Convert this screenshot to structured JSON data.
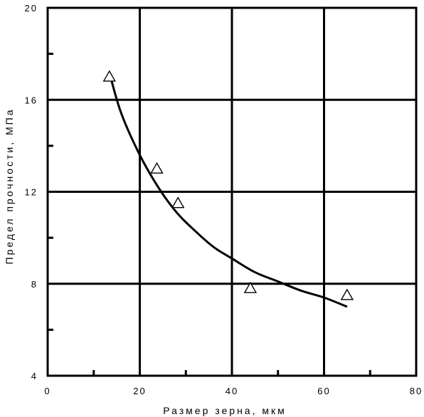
{
  "chart_data": {
    "type": "scatter",
    "title": "",
    "xlabel": "Размер зерна, мкм",
    "ylabel": "Предел прочности, МПа",
    "xlim": [
      0,
      80
    ],
    "ylim": [
      4,
      20
    ],
    "x_ticks": [
      "0",
      "20",
      "40",
      "60",
      "80"
    ],
    "y_ticks": [
      "4",
      "8",
      "12",
      "16",
      "20"
    ],
    "grid": true,
    "marker": "open-triangle",
    "points": [
      {
        "x": 13.4,
        "y": 17.0
      },
      {
        "x": 23.7,
        "y": 13.0
      },
      {
        "x": 28.3,
        "y": 11.5
      },
      {
        "x": 44.0,
        "y": 7.8
      },
      {
        "x": 65.0,
        "y": 7.5
      }
    ],
    "fit_curve": [
      {
        "x": 13.5,
        "y": 17.1
      },
      {
        "x": 16.0,
        "y": 15.4
      },
      {
        "x": 20.0,
        "y": 13.6
      },
      {
        "x": 24.0,
        "y": 12.2
      },
      {
        "x": 28.0,
        "y": 11.1
      },
      {
        "x": 32.0,
        "y": 10.3
      },
      {
        "x": 36.0,
        "y": 9.6
      },
      {
        "x": 40.0,
        "y": 9.1
      },
      {
        "x": 45.0,
        "y": 8.5
      },
      {
        "x": 50.0,
        "y": 8.1
      },
      {
        "x": 55.0,
        "y": 7.7
      },
      {
        "x": 60.0,
        "y": 7.4
      },
      {
        "x": 65.0,
        "y": 7.0
      }
    ]
  }
}
